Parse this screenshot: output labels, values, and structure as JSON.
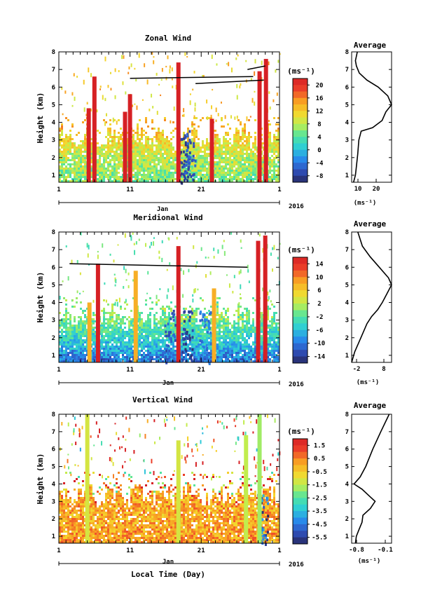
{
  "figure": {
    "x_axis_label": "Local Time (Day)",
    "x_ticks": [
      "1",
      "11",
      "21",
      "1"
    ],
    "month_label": "Jan",
    "year_label": "2016",
    "height_label": "Height (km)",
    "height_ticks": [
      "1",
      "2",
      "3",
      "4",
      "5",
      "6",
      "7",
      "8"
    ],
    "unit_label": "(ms⁻¹)"
  },
  "chart_data": [
    {
      "type": "heatmap",
      "title": "Zonal Wind",
      "xlabel": "Local Time (Day)",
      "ylabel": "Height (km)",
      "xlim": [
        1,
        32
      ],
      "ylim": [
        0.6,
        8
      ],
      "colorbar_ticks": [
        "20",
        "16",
        "12",
        "8",
        "4",
        "0",
        "-4",
        "-8"
      ],
      "color_range": [
        -10,
        22
      ],
      "background_wind": [
        {
          "height": 0.9,
          "value": 6
        },
        {
          "height": 2.0,
          "value": 8
        },
        {
          "height": 2.8,
          "value": 10
        },
        {
          "height": 3.7,
          "value": 13
        }
      ],
      "echo_top_km": 3.6,
      "sparse_noise_above_km": 4.0,
      "strong_events": [
        {
          "day": 5.2,
          "top": 4.8,
          "value": 22
        },
        {
          "day": 6.0,
          "top": 6.6,
          "value": 22
        },
        {
          "day": 10.3,
          "top": 4.6,
          "value": 22
        },
        {
          "day": 11.0,
          "top": 5.6,
          "value": 22
        },
        {
          "day": 17.8,
          "top": 7.4,
          "value": 22
        },
        {
          "day": 22.5,
          "top": 4.2,
          "value": 22
        },
        {
          "day": 29.2,
          "top": 6.9,
          "value": 22
        },
        {
          "day": 30.1,
          "top": 7.6,
          "value": 22
        }
      ],
      "negative_patches": [
        {
          "day": 18.5,
          "value": -8
        },
        {
          "day": 19.3,
          "value": -6
        }
      ],
      "trend_lines": [
        {
          "from": {
            "day": 11.0,
            "height": 6.5
          },
          "to": {
            "day": 28.3,
            "height": 6.6
          }
        },
        {
          "from": {
            "day": 20.2,
            "height": 6.2
          },
          "to": {
            "day": 29.8,
            "height": 6.4
          }
        },
        {
          "from": {
            "day": 27.5,
            "height": 7.0
          },
          "to": {
            "day": 30.0,
            "height": 7.2
          }
        }
      ]
    },
    {
      "type": "line",
      "title": "Average",
      "x_ticks": [
        "10",
        "20"
      ],
      "xlabel": "(ms⁻¹)",
      "xlim": [
        6,
        27
      ],
      "ylim": [
        0.6,
        8
      ],
      "profile": [
        {
          "height": 0.6,
          "value": 7
        },
        {
          "height": 1.0,
          "value": 8
        },
        {
          "height": 1.5,
          "value": 8.5
        },
        {
          "height": 2.2,
          "value": 9.2
        },
        {
          "height": 2.6,
          "value": 9.5
        },
        {
          "height": 3.0,
          "value": 9.8
        },
        {
          "height": 3.5,
          "value": 11
        },
        {
          "height": 3.7,
          "value": 17
        },
        {
          "height": 4.1,
          "value": 22
        },
        {
          "height": 4.6,
          "value": 24
        },
        {
          "height": 5.0,
          "value": 27
        },
        {
          "height": 5.5,
          "value": 25
        },
        {
          "height": 6.0,
          "value": 20
        },
        {
          "height": 6.4,
          "value": 14
        },
        {
          "height": 6.8,
          "value": 10
        },
        {
          "height": 7.2,
          "value": 8.5
        },
        {
          "height": 7.5,
          "value": 8
        },
        {
          "height": 8.0,
          "value": 9
        }
      ]
    },
    {
      "type": "heatmap",
      "title": "Meridional Wind",
      "xlabel": "Local Time (Day)",
      "ylabel": "Height (km)",
      "xlim": [
        1,
        32
      ],
      "ylim": [
        0.6,
        8
      ],
      "colorbar_ticks": [
        "14",
        "10",
        "6",
        "2",
        "-2",
        "-6",
        "-10",
        "-14"
      ],
      "color_range": [
        -16,
        16
      ],
      "background_wind": [
        {
          "height": 0.9,
          "value": -10
        },
        {
          "height": 1.6,
          "value": -6
        },
        {
          "height": 2.4,
          "value": -3
        },
        {
          "height": 3.3,
          "value": 0
        }
      ],
      "echo_top_km": 3.6,
      "sparse_noise_above_km": 4.0,
      "strong_events": [
        {
          "day": 5.3,
          "top": 4.0,
          "value": 8
        },
        {
          "day": 6.5,
          "top": 6.2,
          "value": 16
        },
        {
          "day": 11.8,
          "top": 5.8,
          "value": 8
        },
        {
          "day": 17.8,
          "top": 7.2,
          "value": 16
        },
        {
          "day": 22.8,
          "top": 4.8,
          "value": 8
        },
        {
          "day": 29.0,
          "top": 7.5,
          "value": 16
        },
        {
          "day": 30.0,
          "top": 7.8,
          "value": 16
        }
      ],
      "negative_patches": [
        {
          "day": 16.5,
          "value": -12
        },
        {
          "day": 19.0,
          "value": -14
        },
        {
          "day": 21.5,
          "value": -10
        }
      ],
      "trend_lines": [
        {
          "from": {
            "day": 2.5,
            "height": 6.2
          },
          "to": {
            "day": 27.5,
            "height": 6.0
          }
        }
      ]
    },
    {
      "type": "line",
      "title": "Average",
      "x_ticks": [
        "-2",
        "8"
      ],
      "xlabel": "(ms⁻¹)",
      "xlim": [
        -3,
        10
      ],
      "ylim": [
        0.6,
        8
      ],
      "profile": [
        {
          "height": 0.6,
          "value": -3
        },
        {
          "height": 1.2,
          "value": -2
        },
        {
          "height": 2.0,
          "value": 0
        },
        {
          "height": 2.8,
          "value": 2
        },
        {
          "height": 3.2,
          "value": 3.5
        },
        {
          "height": 3.6,
          "value": 5.5
        },
        {
          "height": 4.0,
          "value": 7
        },
        {
          "height": 4.5,
          "value": 8.5
        },
        {
          "height": 5.0,
          "value": 10
        },
        {
          "height": 5.4,
          "value": 9
        },
        {
          "height": 6.0,
          "value": 6
        },
        {
          "height": 6.6,
          "value": 3
        },
        {
          "height": 7.2,
          "value": 0.5
        },
        {
          "height": 8.0,
          "value": -1
        }
      ]
    },
    {
      "type": "heatmap",
      "title": "Vertical Wind",
      "xlabel": "Local Time (Day)",
      "ylabel": "Height (km)",
      "xlim": [
        1,
        32
      ],
      "ylim": [
        0.6,
        8
      ],
      "colorbar_ticks": [
        "1.5",
        "0.5",
        "-0.5",
        "-1.5",
        "-2.5",
        "-3.5",
        "-4.5",
        "-5.5"
      ],
      "color_range": [
        -6,
        2
      ],
      "background_wind": [
        {
          "height": 0.9,
          "value": 0.2
        },
        {
          "height": 2.0,
          "value": 0
        },
        {
          "height": 3.0,
          "value": 0.1
        },
        {
          "height": 5.0,
          "value": 0
        },
        {
          "height": 7.0,
          "value": 0.1
        }
      ],
      "echo_top_km": 3.8,
      "sparse_noise_above_km": 4.4,
      "strong_events": [
        {
          "day": 5.0,
          "top": 8.0,
          "value": -1.2
        },
        {
          "day": 17.8,
          "top": 6.5,
          "value": -1.2
        },
        {
          "day": 27.3,
          "top": 6.8,
          "value": -1.5
        },
        {
          "day": 29.2,
          "top": 8.0,
          "value": -1.8
        }
      ],
      "negative_patches": [
        {
          "day": 29.6,
          "value": -4.8
        }
      ],
      "trend_lines": []
    },
    {
      "type": "line",
      "title": "Average",
      "x_ticks": [
        "-0.8",
        "-0.1"
      ],
      "xlabel": "(ms⁻¹)",
      "xlim": [
        -0.9,
        -0.05
      ],
      "ylim": [
        0.6,
        8
      ],
      "profile": [
        {
          "height": 0.6,
          "value": -0.82
        },
        {
          "height": 1.0,
          "value": -0.8
        },
        {
          "height": 1.4,
          "value": -0.74
        },
        {
          "height": 1.8,
          "value": -0.68
        },
        {
          "height": 2.2,
          "value": -0.66
        },
        {
          "height": 2.6,
          "value": -0.5
        },
        {
          "height": 3.0,
          "value": -0.4
        },
        {
          "height": 3.3,
          "value": -0.52
        },
        {
          "height": 3.7,
          "value": -0.68
        },
        {
          "height": 4.0,
          "value": -0.85
        },
        {
          "height": 4.4,
          "value": -0.72
        },
        {
          "height": 5.0,
          "value": -0.6
        },
        {
          "height": 6.0,
          "value": -0.45
        },
        {
          "height": 7.0,
          "value": -0.28
        },
        {
          "height": 8.0,
          "value": -0.1
        }
      ]
    }
  ]
}
